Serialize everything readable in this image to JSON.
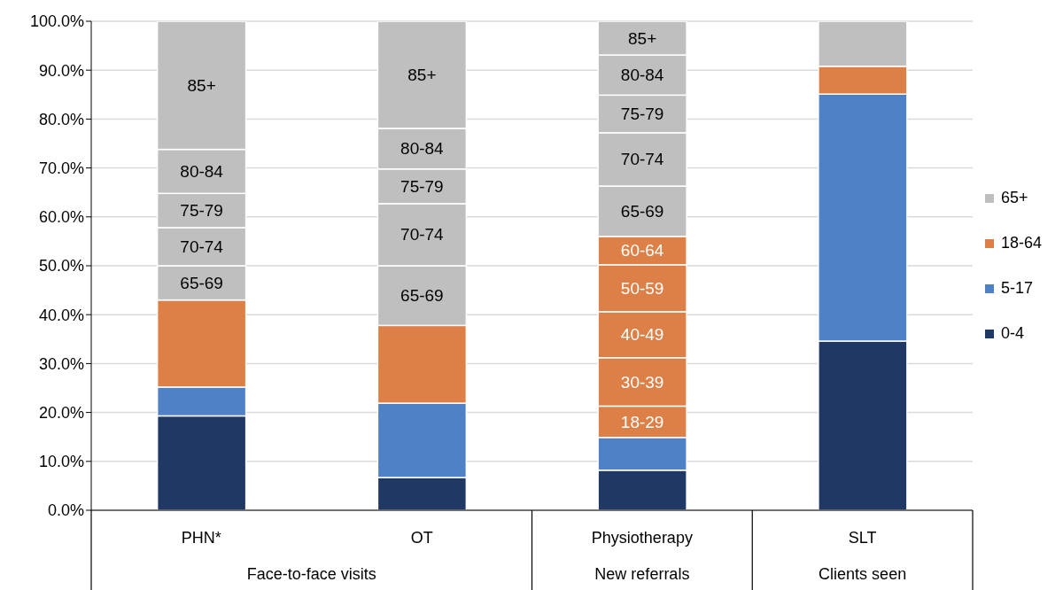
{
  "chart_data": {
    "type": "bar",
    "stacked": true,
    "categories": [
      "PHN*",
      "OT",
      "Physiotherapy",
      "SLT"
    ],
    "annotations": [
      "Face-to-face visits",
      "New referrals",
      "Clients seen"
    ],
    "series": [
      {
        "name": "0-4",
        "color": "#203864",
        "values": [
          19.3,
          6.7,
          8.2,
          34.6
        ]
      },
      {
        "name": "5-17",
        "color": "#4f81c6",
        "values": [
          5.9,
          15.2,
          6.7,
          50.5
        ]
      },
      {
        "name": "18-64",
        "color": "#dd8047",
        "values": [
          17.8,
          15.9,
          6.4,
          5.7
        ],
        "value_labels": [
          null,
          null,
          "18-29",
          null
        ]
      },
      {
        "color": "#dd8047",
        "values": [
          null,
          null,
          9.9,
          null
        ],
        "value_labels": [
          null,
          null,
          "30-39",
          null
        ]
      },
      {
        "color": "#dd8047",
        "values": [
          null,
          null,
          9.4,
          null
        ],
        "value_labels": [
          null,
          null,
          "40-49",
          null
        ]
      },
      {
        "color": "#dd8047",
        "values": [
          null,
          null,
          9.6,
          null
        ],
        "value_labels": [
          null,
          null,
          "50-59",
          null
        ]
      },
      {
        "color": "#dd8047",
        "values": [
          null,
          null,
          5.8,
          null
        ],
        "value_labels": [
          null,
          null,
          "60-64",
          null
        ]
      },
      {
        "name": "65+",
        "color": "#bfbfbf",
        "values": [
          7.0,
          12.2,
          10.3,
          9.2
        ],
        "value_labels": [
          "65-69",
          "65-69",
          "65-69",
          null
        ]
      },
      {
        "color": "#bfbfbf",
        "values": [
          7.8,
          12.7,
          10.9,
          null
        ],
        "value_labels": [
          "70-74",
          "70-74",
          "70-74",
          null
        ]
      },
      {
        "color": "#bfbfbf",
        "values": [
          7.0,
          7.1,
          7.7,
          null
        ],
        "value_labels": [
          "75-79",
          "75-79",
          "75-79",
          null
        ]
      },
      {
        "color": "#bfbfbf",
        "values": [
          9.0,
          8.3,
          8.2,
          null
        ],
        "value_labels": [
          "80-84",
          "80-84",
          "80-84",
          null
        ]
      },
      {
        "color": "#bfbfbf",
        "values": [
          26.2,
          21.9,
          6.9,
          null
        ],
        "value_labels": [
          "85+",
          "85+",
          "85+",
          null
        ]
      }
    ],
    "ylim": [
      0,
      100
    ],
    "yticks": [
      {
        "value": 0,
        "label": "0.0%"
      },
      {
        "value": 10,
        "label": "10.0%"
      },
      {
        "value": 20,
        "label": "20.0%"
      },
      {
        "value": 30,
        "label": "30.0%"
      },
      {
        "value": 40,
        "label": "40.0%"
      },
      {
        "value": 50,
        "label": "50.0%"
      },
      {
        "value": 60,
        "label": "60.0%"
      },
      {
        "value": 70,
        "label": "70.0%"
      },
      {
        "value": 80,
        "label": "80.0%"
      },
      {
        "value": 90,
        "label": "90.0%"
      },
      {
        "value": 100,
        "label": "100.0%"
      }
    ],
    "grid": "y",
    "legend": "right"
  }
}
